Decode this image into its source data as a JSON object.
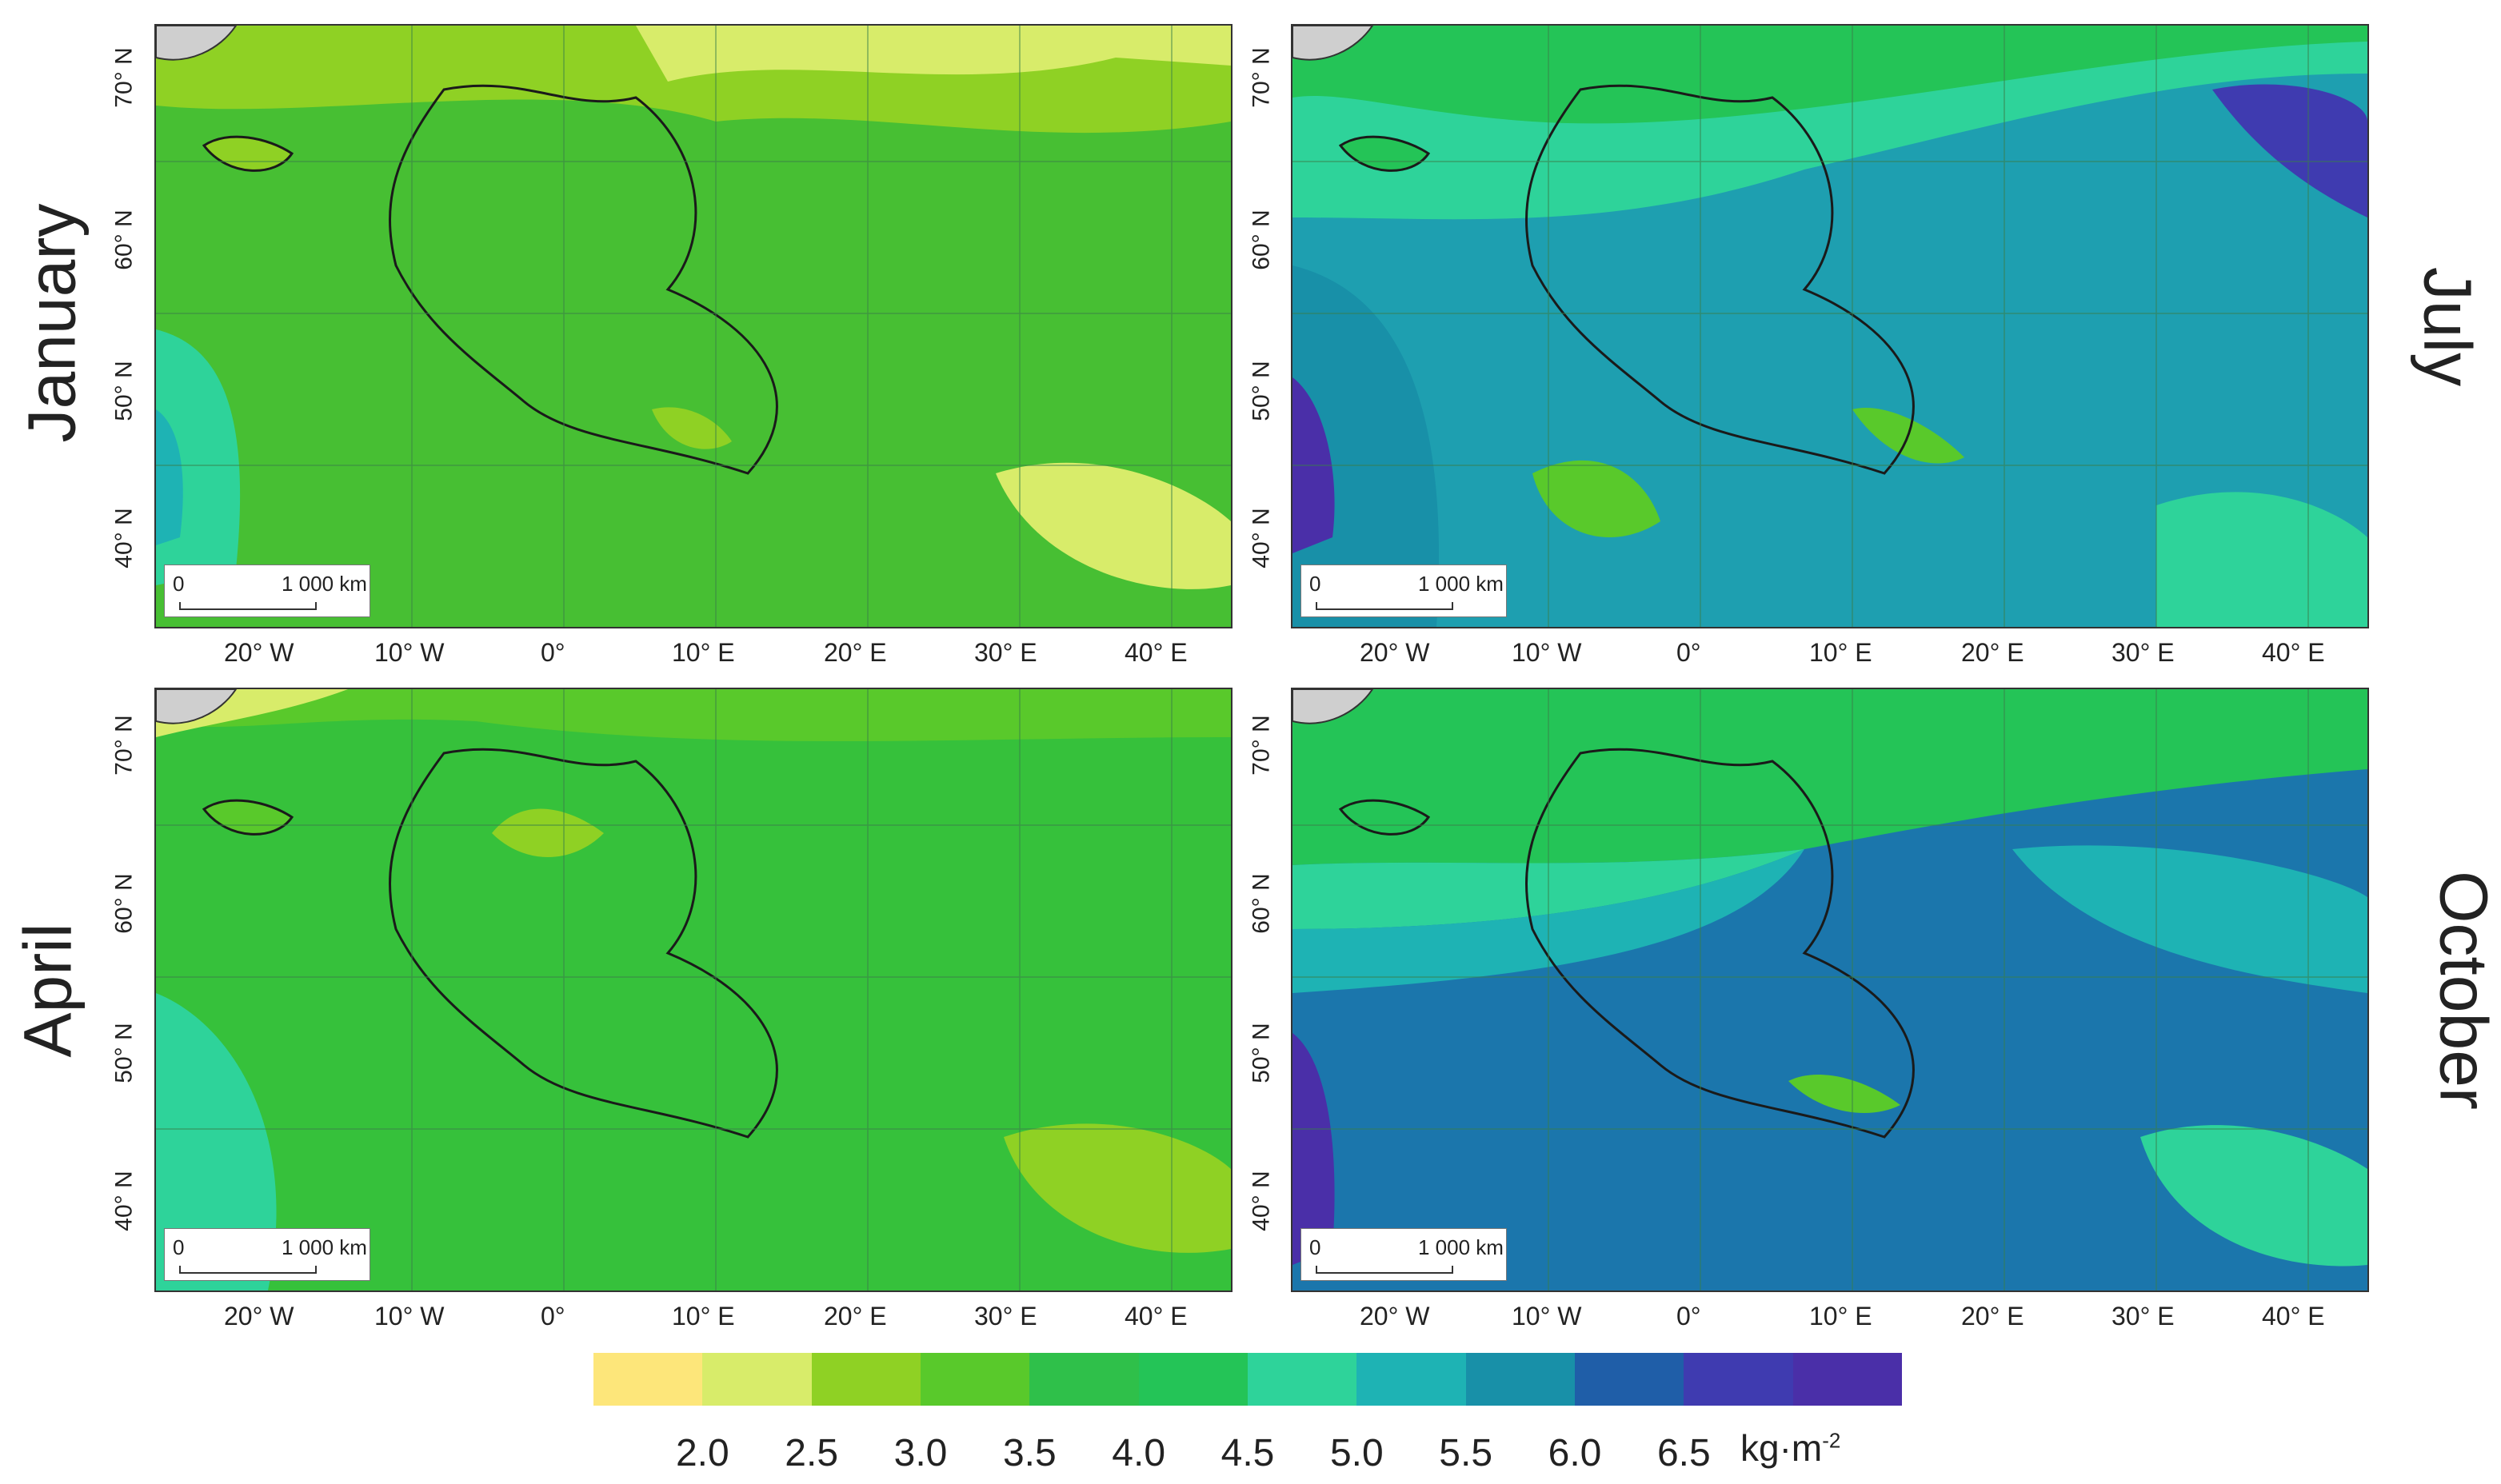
{
  "panels": [
    {
      "month": "January",
      "side": "left"
    },
    {
      "month": "July",
      "side": "right"
    },
    {
      "month": "April",
      "side": "left"
    },
    {
      "month": "October",
      "side": "right"
    }
  ],
  "lat_ticks": [
    "70° N",
    "60° N",
    "50° N",
    "40° N"
  ],
  "lon_ticks": [
    "20° W",
    "10° W",
    "0°",
    "10° E",
    "20° E",
    "30° E",
    "40° E"
  ],
  "scalebar": {
    "start": "0",
    "end": "1 000 km"
  },
  "colorbar": {
    "colors": [
      "#fde67a",
      "#d8ec6a",
      "#8fd124",
      "#59c92b",
      "#2fc04a",
      "#24c457",
      "#2ed39a",
      "#1eb3b4",
      "#1890a8",
      "#1f5ea8",
      "#3f3bb0",
      "#4a2fa8"
    ],
    "labels": [
      "2.0",
      "2.5",
      "3.0",
      "3.5",
      "4.0",
      "4.5",
      "5.0",
      "5.5",
      "6.0",
      "6.5"
    ],
    "unit": "kg·m",
    "unit_exp": "-2"
  }
}
